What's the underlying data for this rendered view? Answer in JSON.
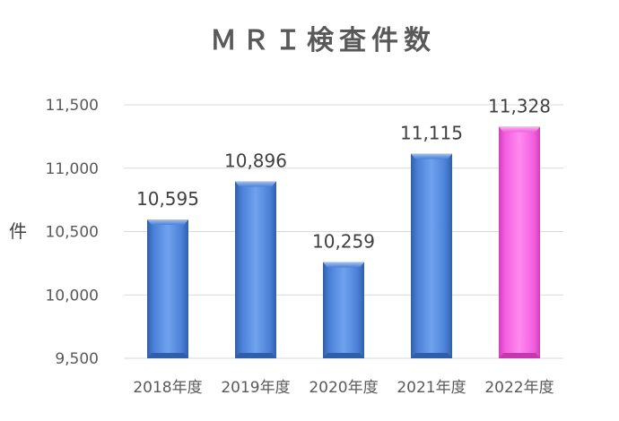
{
  "chart_data": {
    "type": "bar",
    "title": "ＭＲＩ検査件数",
    "ylabel": "件",
    "xlabel": "",
    "categories": [
      "2018年度",
      "2019年度",
      "2020年度",
      "2021年度",
      "2022年度"
    ],
    "values": [
      10595,
      10896,
      10259,
      11115,
      11328
    ],
    "value_labels": [
      "10,595",
      "10,896",
      "10,259",
      "11,115",
      "11,328"
    ],
    "ylim": [
      9500,
      11500
    ],
    "yticks": [
      9500,
      10000,
      10500,
      11000,
      11500
    ],
    "ytick_labels": [
      "9,500",
      "10,000",
      "10,500",
      "11,000",
      "11,500"
    ],
    "grid": true,
    "colors": {
      "default_bar": "#4a7fd6",
      "highlight_bar": "#ff66dd"
    },
    "highlight_index": 4
  }
}
